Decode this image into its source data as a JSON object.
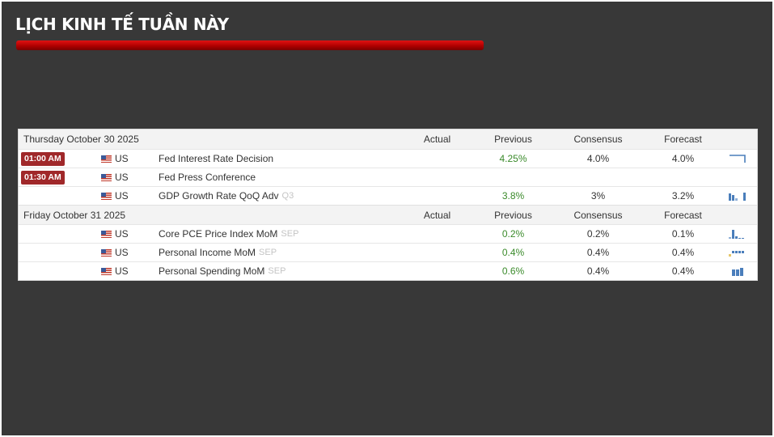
{
  "page_title": "LỊCH KINH TẾ TUẦN NÀY",
  "columns": {
    "actual": "Actual",
    "previous": "Previous",
    "consensus": "Consensus",
    "forecast": "Forecast"
  },
  "days": [
    {
      "label": "Thursday October 30 2025",
      "events": [
        {
          "time": "01:00 AM",
          "country": "US",
          "event": "Fed Interest Rate Decision",
          "period": "",
          "actual": "",
          "previous": "4.25%",
          "consensus": "4.0%",
          "forecast": "4.0%",
          "spark": "line-drop"
        },
        {
          "time": "01:30 AM",
          "country": "US",
          "event": "Fed Press Conference",
          "period": "",
          "actual": "",
          "previous": "",
          "consensus": "",
          "forecast": "",
          "spark": ""
        },
        {
          "time": "",
          "country": "US",
          "event": "GDP Growth Rate QoQ Adv",
          "period": "Q3",
          "actual": "",
          "previous": "3.8%",
          "consensus": "3%",
          "forecast": "3.2%",
          "spark": "bars"
        }
      ]
    },
    {
      "label": "Friday October 31 2025",
      "events": [
        {
          "time": "",
          "country": "US",
          "event": "Core PCE Price Index MoM",
          "period": "SEP",
          "actual": "",
          "previous": "0.2%",
          "consensus": "0.2%",
          "forecast": "0.1%",
          "spark": "bars"
        },
        {
          "time": "",
          "country": "US",
          "event": "Personal Income MoM",
          "period": "SEP",
          "actual": "",
          "previous": "0.4%",
          "consensus": "0.4%",
          "forecast": "0.4%",
          "spark": "bars"
        },
        {
          "time": "",
          "country": "US",
          "event": "Personal Spending MoM",
          "period": "SEP",
          "actual": "",
          "previous": "0.6%",
          "consensus": "0.4%",
          "forecast": "0.4%",
          "spark": "bars"
        }
      ]
    }
  ],
  "colors": {
    "background": "#383838",
    "accent_red": "#b00000",
    "time_badge": "#a0282a",
    "previous_value": "#3a8a2a",
    "spark": "#4a7ebb"
  }
}
